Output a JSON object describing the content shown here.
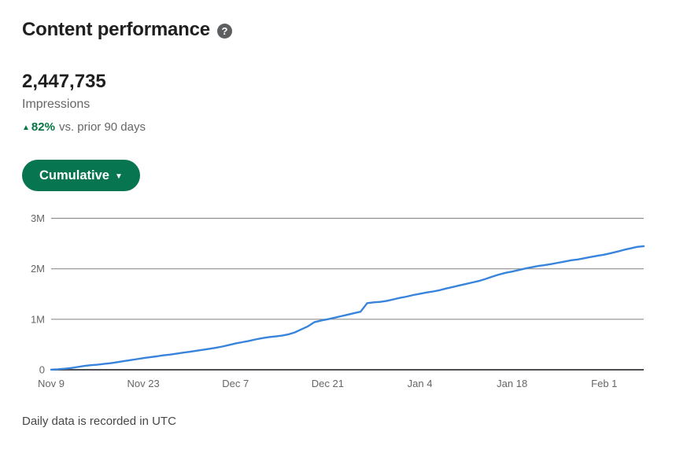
{
  "page": {
    "title": "Content performance",
    "help_glyph": "?",
    "footer_note": "Daily data is recorded in UTC"
  },
  "metric": {
    "value": "2,447,735",
    "label": "Impressions",
    "trend": {
      "arrow": "▲",
      "percent": "82%",
      "suffix": "vs. prior 90 days"
    }
  },
  "controls": {
    "view_mode": {
      "label": "Cumulative",
      "caret": "▼"
    }
  },
  "colors": {
    "accent-green": "#057642",
    "button-green": "#077550",
    "line-blue": "#3884dc",
    "grid-gray": "#8f8f8f",
    "axis-gray": "#4e4e52",
    "text-dark": "#1f1f1f",
    "text-gray": "#666666",
    "footer-gray": "#474747",
    "help-gray": "#5c5e60"
  },
  "chart_data": {
    "type": "line",
    "x_tick_days": [
      0,
      14,
      28,
      42,
      56,
      70,
      84
    ],
    "x_tick_labels": [
      "Nov 9",
      "Nov 23",
      "Dec 7",
      "Dec 21",
      "Jan 4",
      "Jan 18",
      "Feb 1"
    ],
    "x_range_days": [
      0,
      90
    ],
    "y_ticks": [
      0,
      1000000,
      2000000,
      3000000
    ],
    "y_tick_labels": [
      "0",
      "1M",
      "2M",
      "3M"
    ],
    "ylim": [
      0,
      3000000
    ],
    "grid": "horizontal",
    "legend": "none",
    "line_color": "#3884dc",
    "series": [
      {
        "name": "Impressions (cumulative)",
        "values": [
          3000,
          10000,
          20000,
          35000,
          55000,
          75000,
          90000,
          100000,
          115000,
          130000,
          150000,
          170000,
          190000,
          210000,
          230000,
          248000,
          265000,
          285000,
          300000,
          318000,
          338000,
          355000,
          375000,
          395000,
          415000,
          435000,
          460000,
          490000,
          520000,
          545000,
          570000,
          600000,
          625000,
          645000,
          660000,
          675000,
          700000,
          740000,
          800000,
          860000,
          945000,
          975000,
          1000000,
          1030000,
          1060000,
          1090000,
          1120000,
          1150000,
          1320000,
          1335000,
          1345000,
          1365000,
          1395000,
          1425000,
          1450000,
          1480000,
          1505000,
          1530000,
          1550000,
          1575000,
          1610000,
          1640000,
          1670000,
          1700000,
          1730000,
          1760000,
          1800000,
          1845000,
          1885000,
          1920000,
          1945000,
          1975000,
          2005000,
          2030000,
          2055000,
          2075000,
          2095000,
          2120000,
          2145000,
          2170000,
          2185000,
          2210000,
          2235000,
          2258000,
          2280000,
          2310000,
          2340000,
          2375000,
          2405000,
          2435000,
          2447735
        ]
      }
    ]
  }
}
